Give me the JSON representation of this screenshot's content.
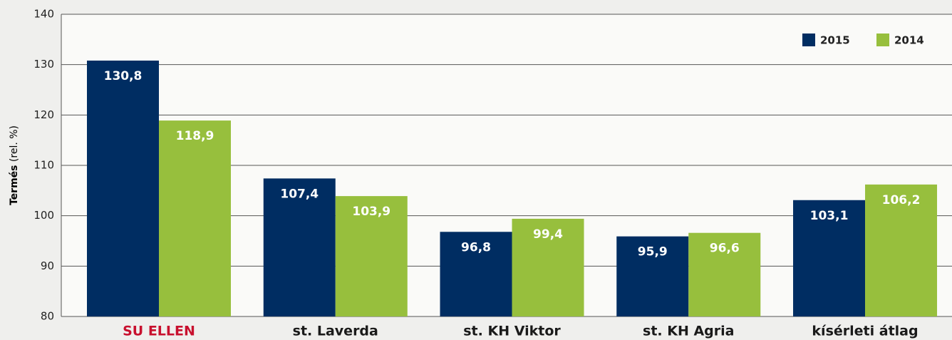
{
  "chart_data": {
    "type": "bar",
    "ylabel": "Termés",
    "ylabel_unit": "(rel. %)",
    "categories": [
      "SU ELLEN",
      "st. Laverda",
      "st. KH Viktor",
      "st. KH Agria",
      "kísérleti átlag"
    ],
    "category_label_colors": [
      "#c8102e",
      "#1a1a1a",
      "#1a1a1a",
      "#1a1a1a",
      "#1a1a1a"
    ],
    "series": [
      {
        "name": "2015",
        "color": "#002d62",
        "values": [
          130.8,
          107.4,
          96.8,
          95.9,
          103.1
        ],
        "value_labels": [
          "130,8",
          "107,4",
          "96,8",
          "95,9",
          "103,1"
        ]
      },
      {
        "name": "2014",
        "color": "#97bf3d",
        "values": [
          118.9,
          103.9,
          99.4,
          96.6,
          106.2
        ],
        "value_labels": [
          "118,9",
          "103,9",
          "99,4",
          "96,6",
          "106,2"
        ]
      }
    ],
    "ylim": [
      80,
      140
    ],
    "yticks": [
      80,
      90,
      100,
      110,
      120,
      130,
      140
    ],
    "grid": true,
    "legend": "top-right"
  }
}
